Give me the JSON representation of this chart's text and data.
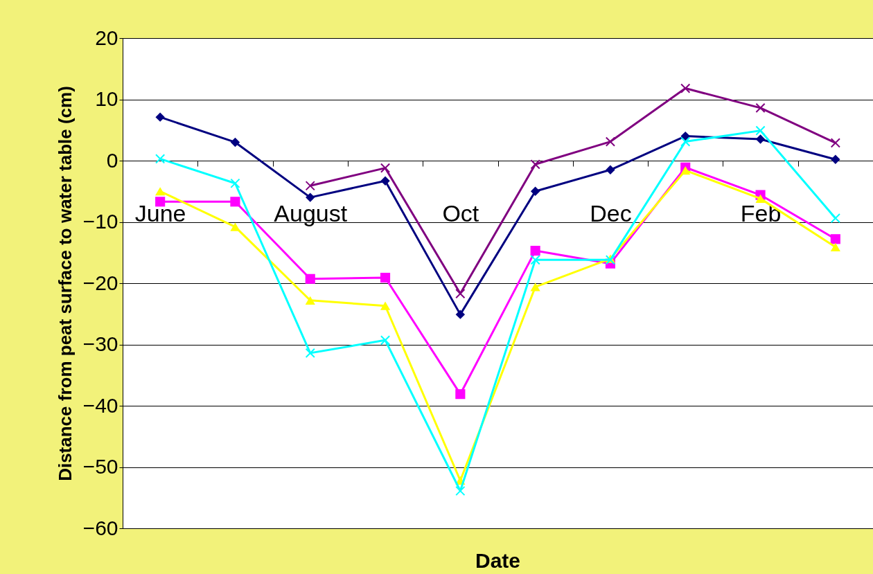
{
  "chart_data": {
    "type": "line",
    "xlabel": "Date",
    "ylabel": "Distance from peat surface to water table (cm)",
    "categories": [
      "June",
      null,
      "August",
      null,
      "Oct",
      null,
      "Dec",
      null,
      "Feb",
      null
    ],
    "series": [
      {
        "color": "#000080",
        "marker": "diamond",
        "values": [
          7.1,
          3.0,
          -6.0,
          -3.3,
          -25.1,
          -5.0,
          -1.5,
          4.0,
          3.5,
          0.2
        ]
      },
      {
        "color": "#800080",
        "marker": "cross",
        "values": [
          null,
          null,
          -4.1,
          -1.2,
          -21.7,
          -0.6,
          3.1,
          11.8,
          8.6,
          2.9
        ]
      },
      {
        "color": "#ff00ff",
        "marker": "square",
        "values": [
          -6.7,
          -6.7,
          -19.3,
          -19.1,
          -38.1,
          -14.7,
          -16.8,
          -1.1,
          -5.6,
          -12.8
        ]
      },
      {
        "color": "#ffff00",
        "marker": "triangle",
        "values": [
          -5.0,
          -10.8,
          -22.8,
          -23.7,
          -52.2,
          -20.6,
          -16.0,
          -1.6,
          -6.2,
          -14.1
        ]
      },
      {
        "color": "#00ffff",
        "marker": "cross",
        "values": [
          0.3,
          -3.7,
          -31.4,
          -29.3,
          -53.9,
          -16.2,
          -16.2,
          3.1,
          4.9,
          -9.4
        ]
      }
    ],
    "ylim": [
      -60,
      20
    ],
    "yticks": [
      -60,
      -50,
      -40,
      -30,
      -20,
      -10,
      0,
      10,
      20
    ],
    "grid": "y",
    "legend": false,
    "line_style": "solid"
  }
}
